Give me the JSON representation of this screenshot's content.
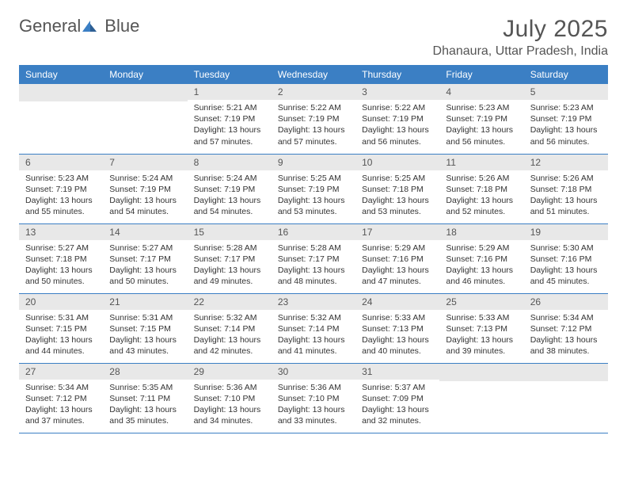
{
  "logo": {
    "text1": "General",
    "text2": "Blue"
  },
  "title": "July 2025",
  "location": "Dhanaura, Uttar Pradesh, India",
  "weekdays": [
    "Sunday",
    "Monday",
    "Tuesday",
    "Wednesday",
    "Thursday",
    "Friday",
    "Saturday"
  ],
  "colors": {
    "header_bg": "#3b7fc4",
    "header_text": "#ffffff",
    "daynum_bg": "#e8e8e8",
    "border": "#3b7fc4",
    "text": "#333333",
    "title_text": "#555555"
  },
  "weeks": [
    [
      null,
      null,
      {
        "n": "1",
        "sunrise": "5:21 AM",
        "sunset": "7:19 PM",
        "daylight": "13 hours and 57 minutes."
      },
      {
        "n": "2",
        "sunrise": "5:22 AM",
        "sunset": "7:19 PM",
        "daylight": "13 hours and 57 minutes."
      },
      {
        "n": "3",
        "sunrise": "5:22 AM",
        "sunset": "7:19 PM",
        "daylight": "13 hours and 56 minutes."
      },
      {
        "n": "4",
        "sunrise": "5:23 AM",
        "sunset": "7:19 PM",
        "daylight": "13 hours and 56 minutes."
      },
      {
        "n": "5",
        "sunrise": "5:23 AM",
        "sunset": "7:19 PM",
        "daylight": "13 hours and 56 minutes."
      }
    ],
    [
      {
        "n": "6",
        "sunrise": "5:23 AM",
        "sunset": "7:19 PM",
        "daylight": "13 hours and 55 minutes."
      },
      {
        "n": "7",
        "sunrise": "5:24 AM",
        "sunset": "7:19 PM",
        "daylight": "13 hours and 54 minutes."
      },
      {
        "n": "8",
        "sunrise": "5:24 AM",
        "sunset": "7:19 PM",
        "daylight": "13 hours and 54 minutes."
      },
      {
        "n": "9",
        "sunrise": "5:25 AM",
        "sunset": "7:19 PM",
        "daylight": "13 hours and 53 minutes."
      },
      {
        "n": "10",
        "sunrise": "5:25 AM",
        "sunset": "7:18 PM",
        "daylight": "13 hours and 53 minutes."
      },
      {
        "n": "11",
        "sunrise": "5:26 AM",
        "sunset": "7:18 PM",
        "daylight": "13 hours and 52 minutes."
      },
      {
        "n": "12",
        "sunrise": "5:26 AM",
        "sunset": "7:18 PM",
        "daylight": "13 hours and 51 minutes."
      }
    ],
    [
      {
        "n": "13",
        "sunrise": "5:27 AM",
        "sunset": "7:18 PM",
        "daylight": "13 hours and 50 minutes."
      },
      {
        "n": "14",
        "sunrise": "5:27 AM",
        "sunset": "7:17 PM",
        "daylight": "13 hours and 50 minutes."
      },
      {
        "n": "15",
        "sunrise": "5:28 AM",
        "sunset": "7:17 PM",
        "daylight": "13 hours and 49 minutes."
      },
      {
        "n": "16",
        "sunrise": "5:28 AM",
        "sunset": "7:17 PM",
        "daylight": "13 hours and 48 minutes."
      },
      {
        "n": "17",
        "sunrise": "5:29 AM",
        "sunset": "7:16 PM",
        "daylight": "13 hours and 47 minutes."
      },
      {
        "n": "18",
        "sunrise": "5:29 AM",
        "sunset": "7:16 PM",
        "daylight": "13 hours and 46 minutes."
      },
      {
        "n": "19",
        "sunrise": "5:30 AM",
        "sunset": "7:16 PM",
        "daylight": "13 hours and 45 minutes."
      }
    ],
    [
      {
        "n": "20",
        "sunrise": "5:31 AM",
        "sunset": "7:15 PM",
        "daylight": "13 hours and 44 minutes."
      },
      {
        "n": "21",
        "sunrise": "5:31 AM",
        "sunset": "7:15 PM",
        "daylight": "13 hours and 43 minutes."
      },
      {
        "n": "22",
        "sunrise": "5:32 AM",
        "sunset": "7:14 PM",
        "daylight": "13 hours and 42 minutes."
      },
      {
        "n": "23",
        "sunrise": "5:32 AM",
        "sunset": "7:14 PM",
        "daylight": "13 hours and 41 minutes."
      },
      {
        "n": "24",
        "sunrise": "5:33 AM",
        "sunset": "7:13 PM",
        "daylight": "13 hours and 40 minutes."
      },
      {
        "n": "25",
        "sunrise": "5:33 AM",
        "sunset": "7:13 PM",
        "daylight": "13 hours and 39 minutes."
      },
      {
        "n": "26",
        "sunrise": "5:34 AM",
        "sunset": "7:12 PM",
        "daylight": "13 hours and 38 minutes."
      }
    ],
    [
      {
        "n": "27",
        "sunrise": "5:34 AM",
        "sunset": "7:12 PM",
        "daylight": "13 hours and 37 minutes."
      },
      {
        "n": "28",
        "sunrise": "5:35 AM",
        "sunset": "7:11 PM",
        "daylight": "13 hours and 35 minutes."
      },
      {
        "n": "29",
        "sunrise": "5:36 AM",
        "sunset": "7:10 PM",
        "daylight": "13 hours and 34 minutes."
      },
      {
        "n": "30",
        "sunrise": "5:36 AM",
        "sunset": "7:10 PM",
        "daylight": "13 hours and 33 minutes."
      },
      {
        "n": "31",
        "sunrise": "5:37 AM",
        "sunset": "7:09 PM",
        "daylight": "13 hours and 32 minutes."
      },
      null,
      null
    ]
  ],
  "labels": {
    "sunrise": "Sunrise:",
    "sunset": "Sunset:",
    "daylight": "Daylight:"
  }
}
